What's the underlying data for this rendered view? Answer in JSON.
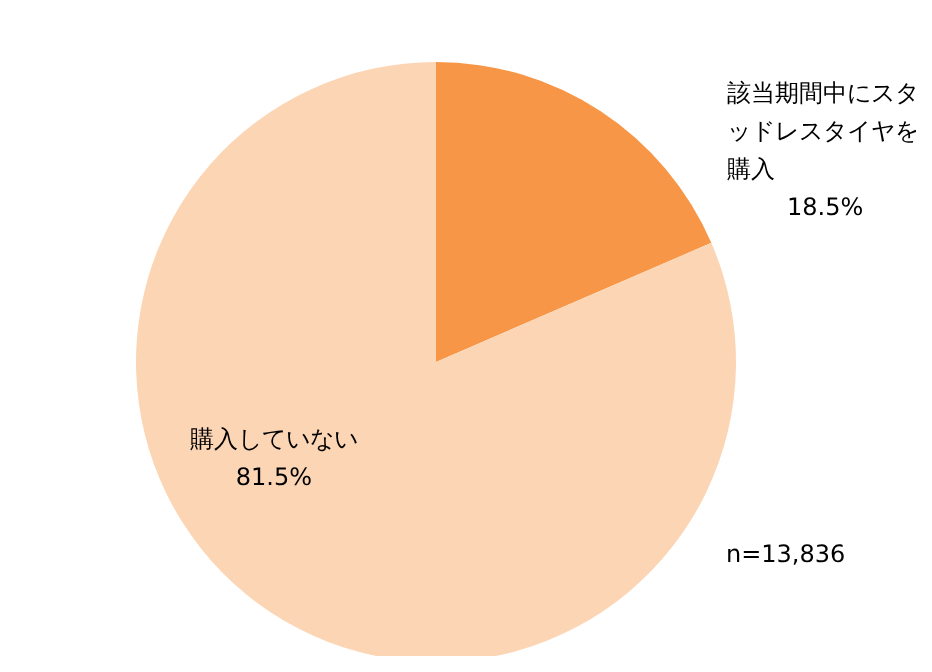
{
  "chart_data": {
    "type": "pie",
    "categories": [
      "該当期間中にスタッドレスタイヤを購入",
      "購入していない"
    ],
    "values": [
      18.5,
      81.5
    ],
    "colors": [
      "#f79646",
      "#fcd5b4"
    ],
    "value_labels": [
      "18.5%",
      "81.5%"
    ],
    "annotations": [
      "n=13,836"
    ]
  }
}
